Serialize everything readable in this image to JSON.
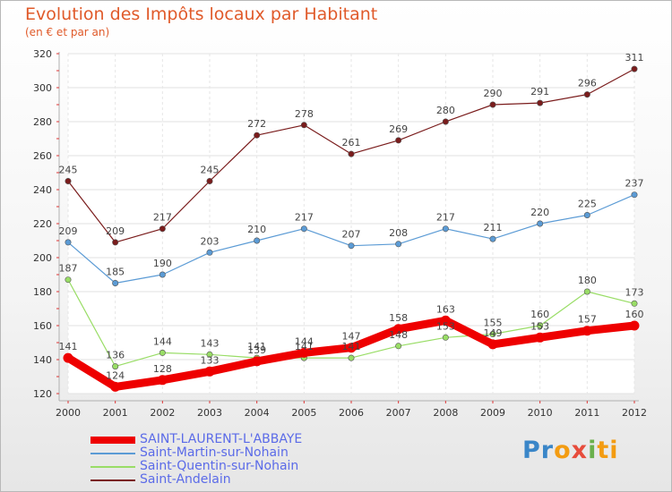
{
  "header": {
    "title": "Evolution des Impôts locaux par Habitant",
    "subtitle": "(en € et par an)"
  },
  "logo": {
    "text": "Proxiti",
    "parts": [
      "Pr",
      "o",
      "x",
      "i",
      "ti"
    ]
  },
  "chart_data": {
    "type": "line",
    "title": "Evolution des Impôts locaux par Habitant",
    "subtitle": "(en € et par an)",
    "xlabel": "",
    "ylabel": "",
    "ylim": [
      120,
      320
    ],
    "yticks": [
      120,
      140,
      160,
      180,
      200,
      220,
      240,
      260,
      280,
      300,
      320
    ],
    "grid": true,
    "legend_position": "bottom-left",
    "x": [
      "2000",
      "2001",
      "2002",
      "2003",
      "2004",
      "2005",
      "2006",
      "2007",
      "2008",
      "2009",
      "2010",
      "2011",
      "2012"
    ],
    "series": [
      {
        "name": "SAINT-LAURENT-L'ABBAYE",
        "color": "#ee0000",
        "thick": true,
        "values": [
          141,
          124,
          128,
          133,
          139,
          144,
          147,
          158,
          163,
          149,
          153,
          157,
          160
        ]
      },
      {
        "name": "Saint-Martin-sur-Nohain",
        "color": "#5b9bd5",
        "thick": false,
        "values": [
          209,
          185,
          190,
          203,
          210,
          217,
          207,
          208,
          217,
          211,
          220,
          225,
          237
        ]
      },
      {
        "name": "Saint-Quentin-sur-Nohain",
        "color": "#99dd66",
        "thick": false,
        "values": [
          187,
          136,
          144,
          143,
          141,
          141,
          141,
          148,
          153,
          155,
          160,
          180,
          173
        ]
      },
      {
        "name": "Saint-Andelain",
        "color": "#7a1c1c",
        "thick": false,
        "values": [
          245,
          209,
          217,
          245,
          272,
          278,
          261,
          269,
          280,
          290,
          291,
          296,
          311
        ]
      }
    ]
  }
}
